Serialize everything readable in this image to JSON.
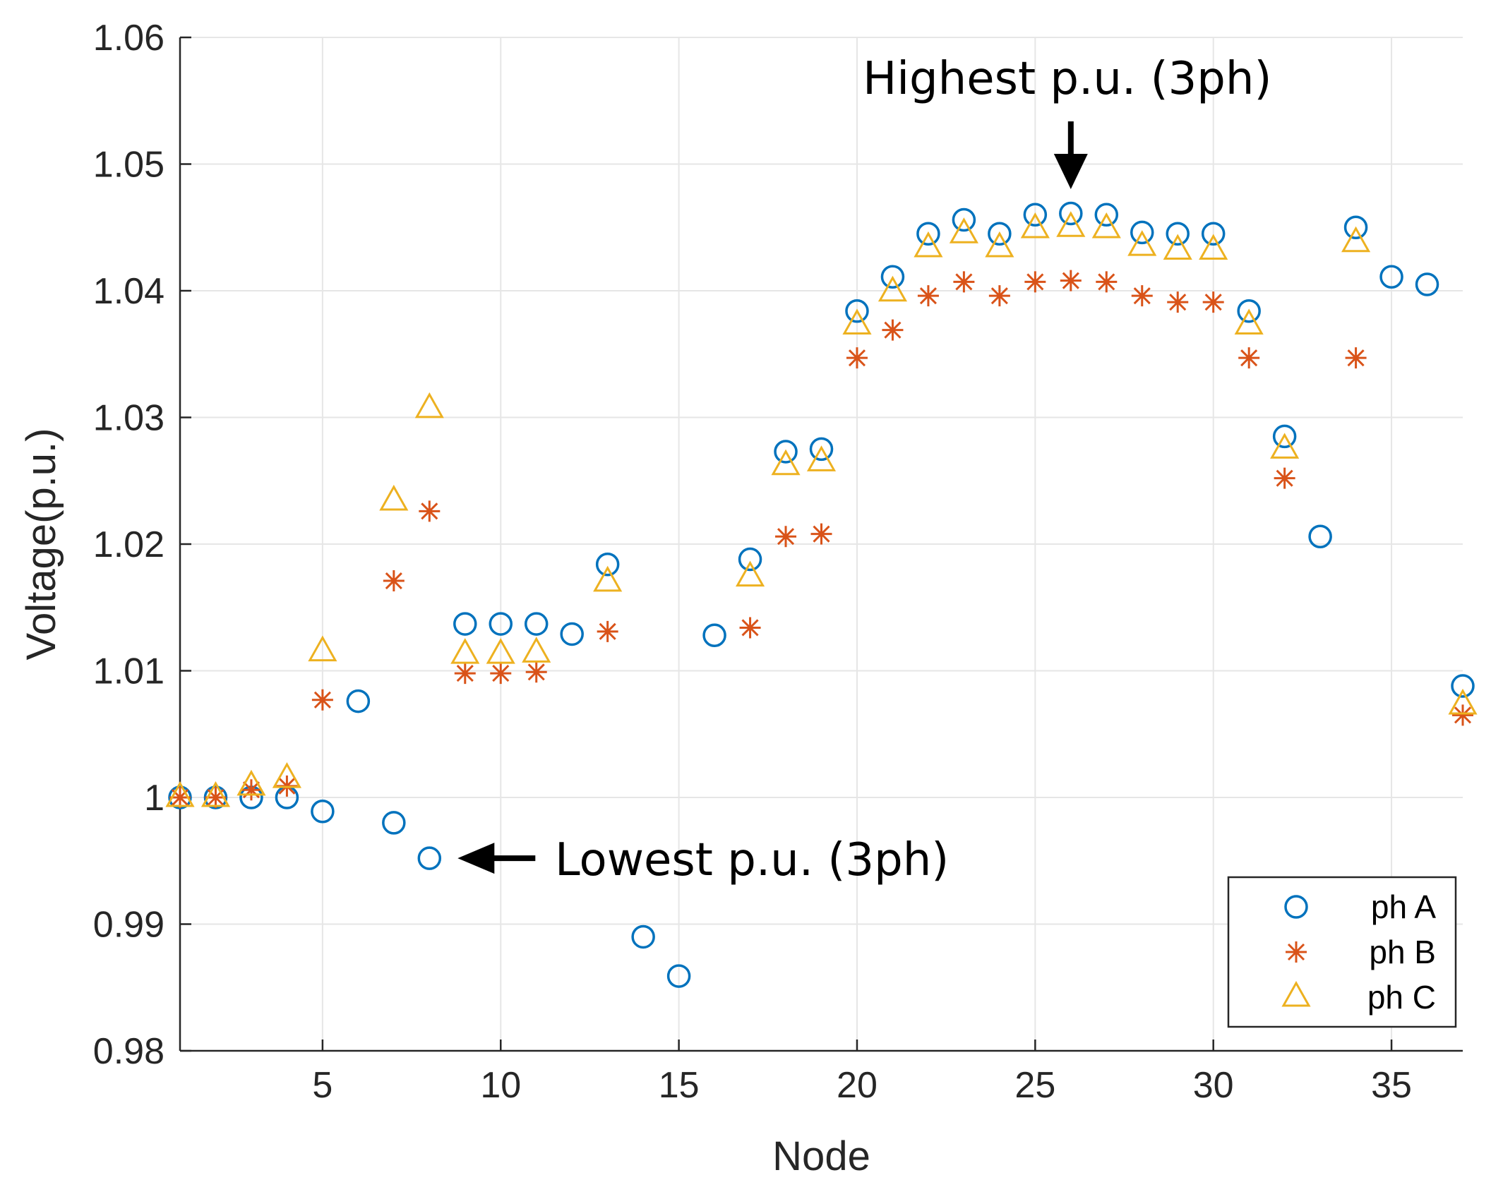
{
  "chart_data": {
    "type": "scatter",
    "title": "",
    "xlabel": "Node",
    "ylabel": "Voltage(p.u.)",
    "xlim": [
      1,
      37
    ],
    "ylim": [
      0.98,
      1.06
    ],
    "x_ticks": [
      "5",
      "10",
      "15",
      "20",
      "25",
      "30",
      "35"
    ],
    "x_tick_values": [
      5,
      10,
      15,
      20,
      25,
      30,
      35
    ],
    "y_ticks": [
      "0.98",
      "0.99",
      "1",
      "1.01",
      "1.02",
      "1.03",
      "1.04",
      "1.05",
      "1.06"
    ],
    "y_tick_values": [
      0.98,
      0.99,
      1.0,
      1.01,
      1.02,
      1.03,
      1.04,
      1.05,
      1.06
    ],
    "grid": true,
    "legend_position": "bottom-right",
    "series": [
      {
        "name": "ph A",
        "marker": "circle",
        "color": "#0072BD",
        "points": [
          [
            1,
            1.0
          ],
          [
            2,
            1.0
          ],
          [
            3,
            1.0
          ],
          [
            4,
            1.0
          ],
          [
            5,
            0.9989
          ],
          [
            6,
            1.0076
          ],
          [
            7,
            0.998
          ],
          [
            8,
            0.9952
          ],
          [
            9,
            1.0137
          ],
          [
            10,
            1.0137
          ],
          [
            11,
            1.0137
          ],
          [
            12,
            1.0129
          ],
          [
            13,
            1.0184
          ],
          [
            14,
            0.989
          ],
          [
            15,
            0.9859
          ],
          [
            16,
            1.0128
          ],
          [
            17,
            1.0188
          ],
          [
            18,
            1.0273
          ],
          [
            19,
            1.0275
          ],
          [
            20,
            1.0384
          ],
          [
            21,
            1.0411
          ],
          [
            22,
            1.0445
          ],
          [
            23,
            1.0456
          ],
          [
            24,
            1.0445
          ],
          [
            25,
            1.046
          ],
          [
            26,
            1.0461
          ],
          [
            27,
            1.046
          ],
          [
            28,
            1.0446
          ],
          [
            29,
            1.0445
          ],
          [
            30,
            1.0445
          ],
          [
            31,
            1.0384
          ],
          [
            32,
            1.0285
          ],
          [
            33,
            1.0206
          ],
          [
            34,
            1.045
          ],
          [
            35,
            1.0411
          ],
          [
            36,
            1.0405
          ],
          [
            37,
            1.0088
          ]
        ]
      },
      {
        "name": "ph B",
        "marker": "asterisk",
        "color": "#D95319",
        "points": [
          [
            1,
            1.0
          ],
          [
            2,
            1.0
          ],
          [
            3,
            1.0006
          ],
          [
            4,
            1.0009
          ],
          [
            5,
            1.0077
          ],
          [
            7,
            1.0171
          ],
          [
            8,
            1.0226
          ],
          [
            9,
            1.0098
          ],
          [
            10,
            1.0098
          ],
          [
            11,
            1.0099
          ],
          [
            13,
            1.0131
          ],
          [
            17,
            1.0134
          ],
          [
            18,
            1.0206
          ],
          [
            19,
            1.0208
          ],
          [
            20,
            1.0347
          ],
          [
            21,
            1.0369
          ],
          [
            22,
            1.0396
          ],
          [
            23,
            1.0407
          ],
          [
            24,
            1.0396
          ],
          [
            25,
            1.0407
          ],
          [
            26,
            1.0408
          ],
          [
            27,
            1.0407
          ],
          [
            28,
            1.0396
          ],
          [
            29,
            1.0391
          ],
          [
            30,
            1.0391
          ],
          [
            31,
            1.0347
          ],
          [
            32,
            1.0252
          ],
          [
            34,
            1.0347
          ],
          [
            37,
            1.0065
          ]
        ]
      },
      {
        "name": "ph C",
        "marker": "triangle",
        "color": "#EDB120",
        "points": [
          [
            1,
            1.0
          ],
          [
            2,
            1.0
          ],
          [
            3,
            1.0009
          ],
          [
            4,
            1.0015
          ],
          [
            5,
            1.0115
          ],
          [
            7,
            1.0234
          ],
          [
            8,
            1.0307
          ],
          [
            9,
            1.0113
          ],
          [
            10,
            1.0113
          ],
          [
            11,
            1.0114
          ],
          [
            13,
            1.017
          ],
          [
            17,
            1.0174
          ],
          [
            18,
            1.0262
          ],
          [
            19,
            1.0265
          ],
          [
            20,
            1.0373
          ],
          [
            21,
            1.0399
          ],
          [
            22,
            1.0434
          ],
          [
            23,
            1.0445
          ],
          [
            24,
            1.0434
          ],
          [
            25,
            1.0449
          ],
          [
            26,
            1.045
          ],
          [
            27,
            1.0449
          ],
          [
            28,
            1.0435
          ],
          [
            29,
            1.0432
          ],
          [
            30,
            1.0432
          ],
          [
            31,
            1.0373
          ],
          [
            32,
            1.0275
          ],
          [
            34,
            1.0438
          ],
          [
            37,
            1.0073
          ]
        ]
      }
    ],
    "annotations": [
      {
        "text": "Highest p.u. (3ph)",
        "target_node": 26,
        "arrow": "down"
      },
      {
        "text": "Lowest p.u. (3ph)",
        "target_node": 8,
        "arrow": "left"
      }
    ]
  }
}
